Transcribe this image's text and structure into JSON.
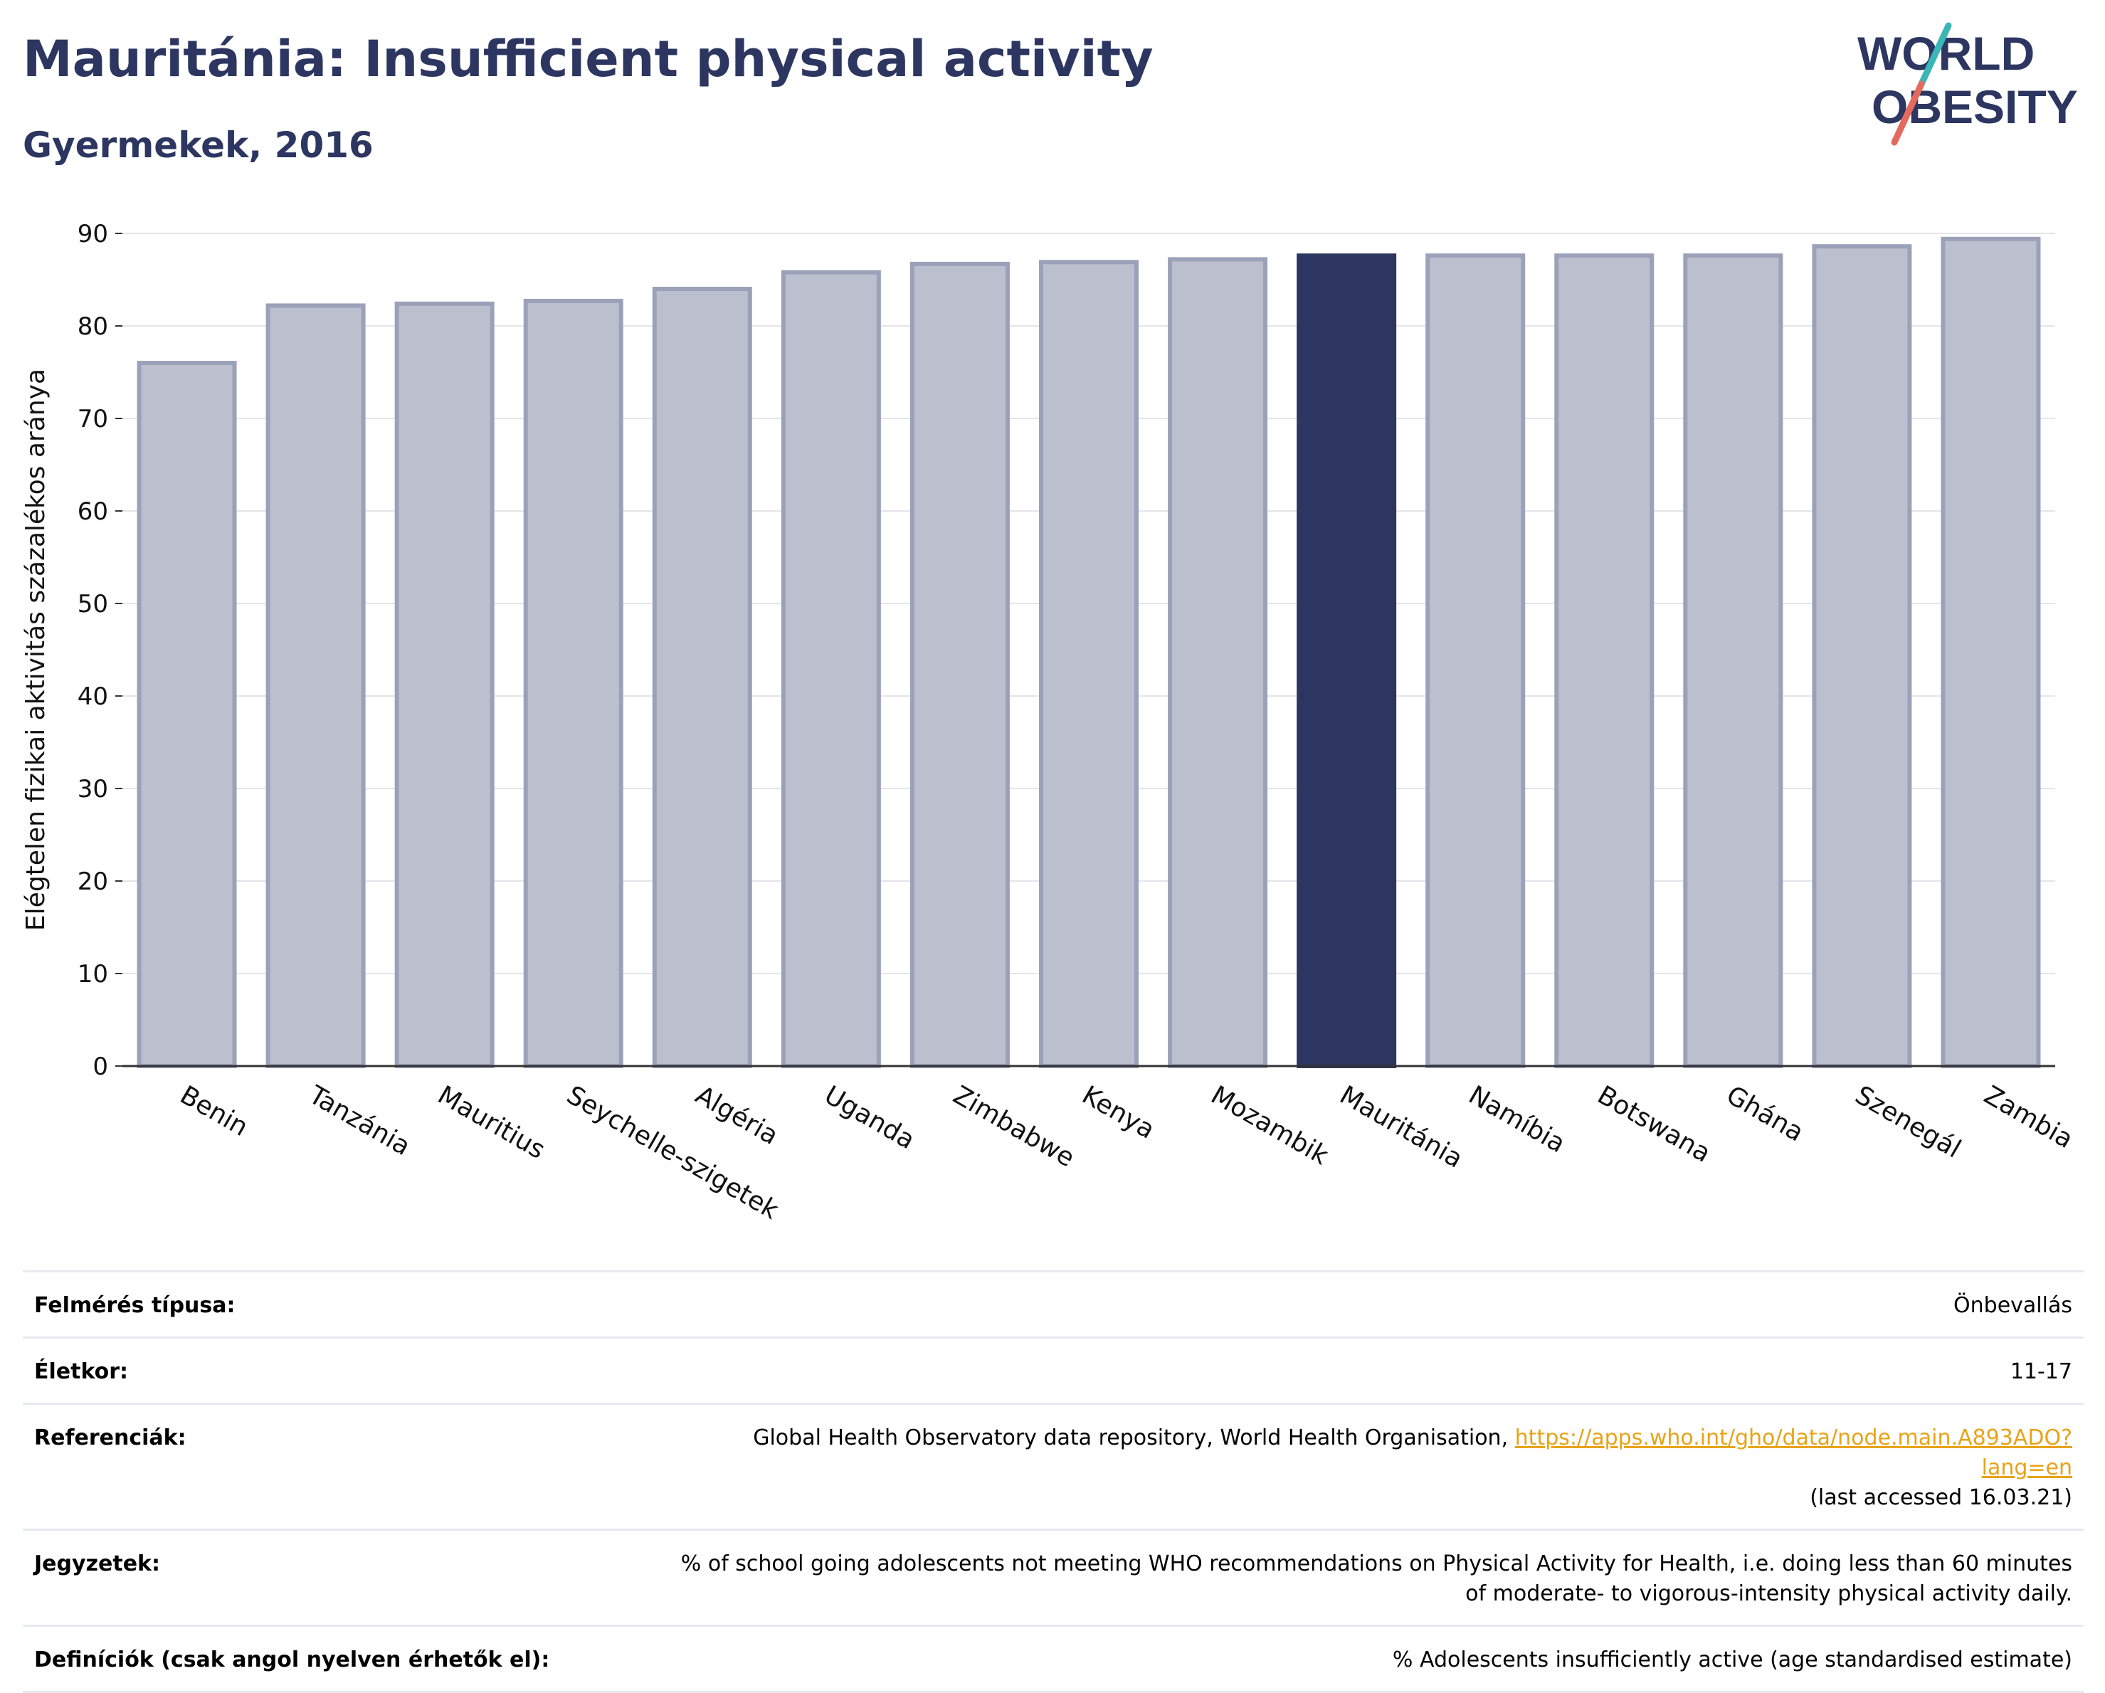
{
  "header": {
    "title": "Mauritánia: Insufficient physical activity",
    "subtitle": "Gyermekek, 2016"
  },
  "logo": {
    "line1": "WORLD",
    "line2": "OBESITY"
  },
  "colors": {
    "bar": "#bcc0ce",
    "bar_border": "#9ba1b9",
    "highlight": "#2c3660",
    "text": "#2c3660",
    "accent_teal": "#3ab6b6",
    "accent_coral": "#e36a5c",
    "link": "#e8a317"
  },
  "chart_data": {
    "type": "bar",
    "title": "Mauritánia: Insufficient physical activity",
    "subtitle": "Gyermekek, 2016",
    "ylabel": "Elégtelen fizikai aktivitás százalékos aránya",
    "xlabel": "",
    "ylim": [
      0,
      90
    ],
    "yticks": [
      0,
      10,
      20,
      30,
      40,
      50,
      60,
      70,
      80,
      90
    ],
    "grid": true,
    "highlight": "Mauritánia",
    "categories": [
      "Benin",
      "Tanzánia",
      "Mauritius",
      "Seychelle-szigetek",
      "Algéria",
      "Uganda",
      "Zimbabwe",
      "Kenya",
      "Mozambik",
      "Mauritánia",
      "Namíbia",
      "Botswana",
      "Ghána",
      "Szenegál",
      "Zambia"
    ],
    "values": [
      76.0,
      82.2,
      82.4,
      82.7,
      84.0,
      85.8,
      86.7,
      86.9,
      87.2,
      87.6,
      87.6,
      87.6,
      87.6,
      88.6,
      89.4
    ]
  },
  "info": [
    {
      "label": "Felmérés típusa:",
      "value": "Önbevallás"
    },
    {
      "label": "Életkor:",
      "value": "11-17"
    },
    {
      "label": "Referenciák:",
      "value": "Global Health Observatory data repository, World Health Organisation,",
      "link": "https://apps.who.int/gho/data/node.main.A893ADO?lang=en",
      "value_after": "(last accessed 16.03.21)"
    },
    {
      "label": "Jegyzetek:",
      "value": "% of school going adolescents not meeting WHO recommendations on Physical Activity for Health, i.e. doing less than 60 minutes of moderate- to vigorous-intensity physical activity daily."
    },
    {
      "label": "Definíciók (csak angol nyelven érhetők el):",
      "value": "% Adolescents insufficiently active (age standardised estimate)"
    }
  ]
}
